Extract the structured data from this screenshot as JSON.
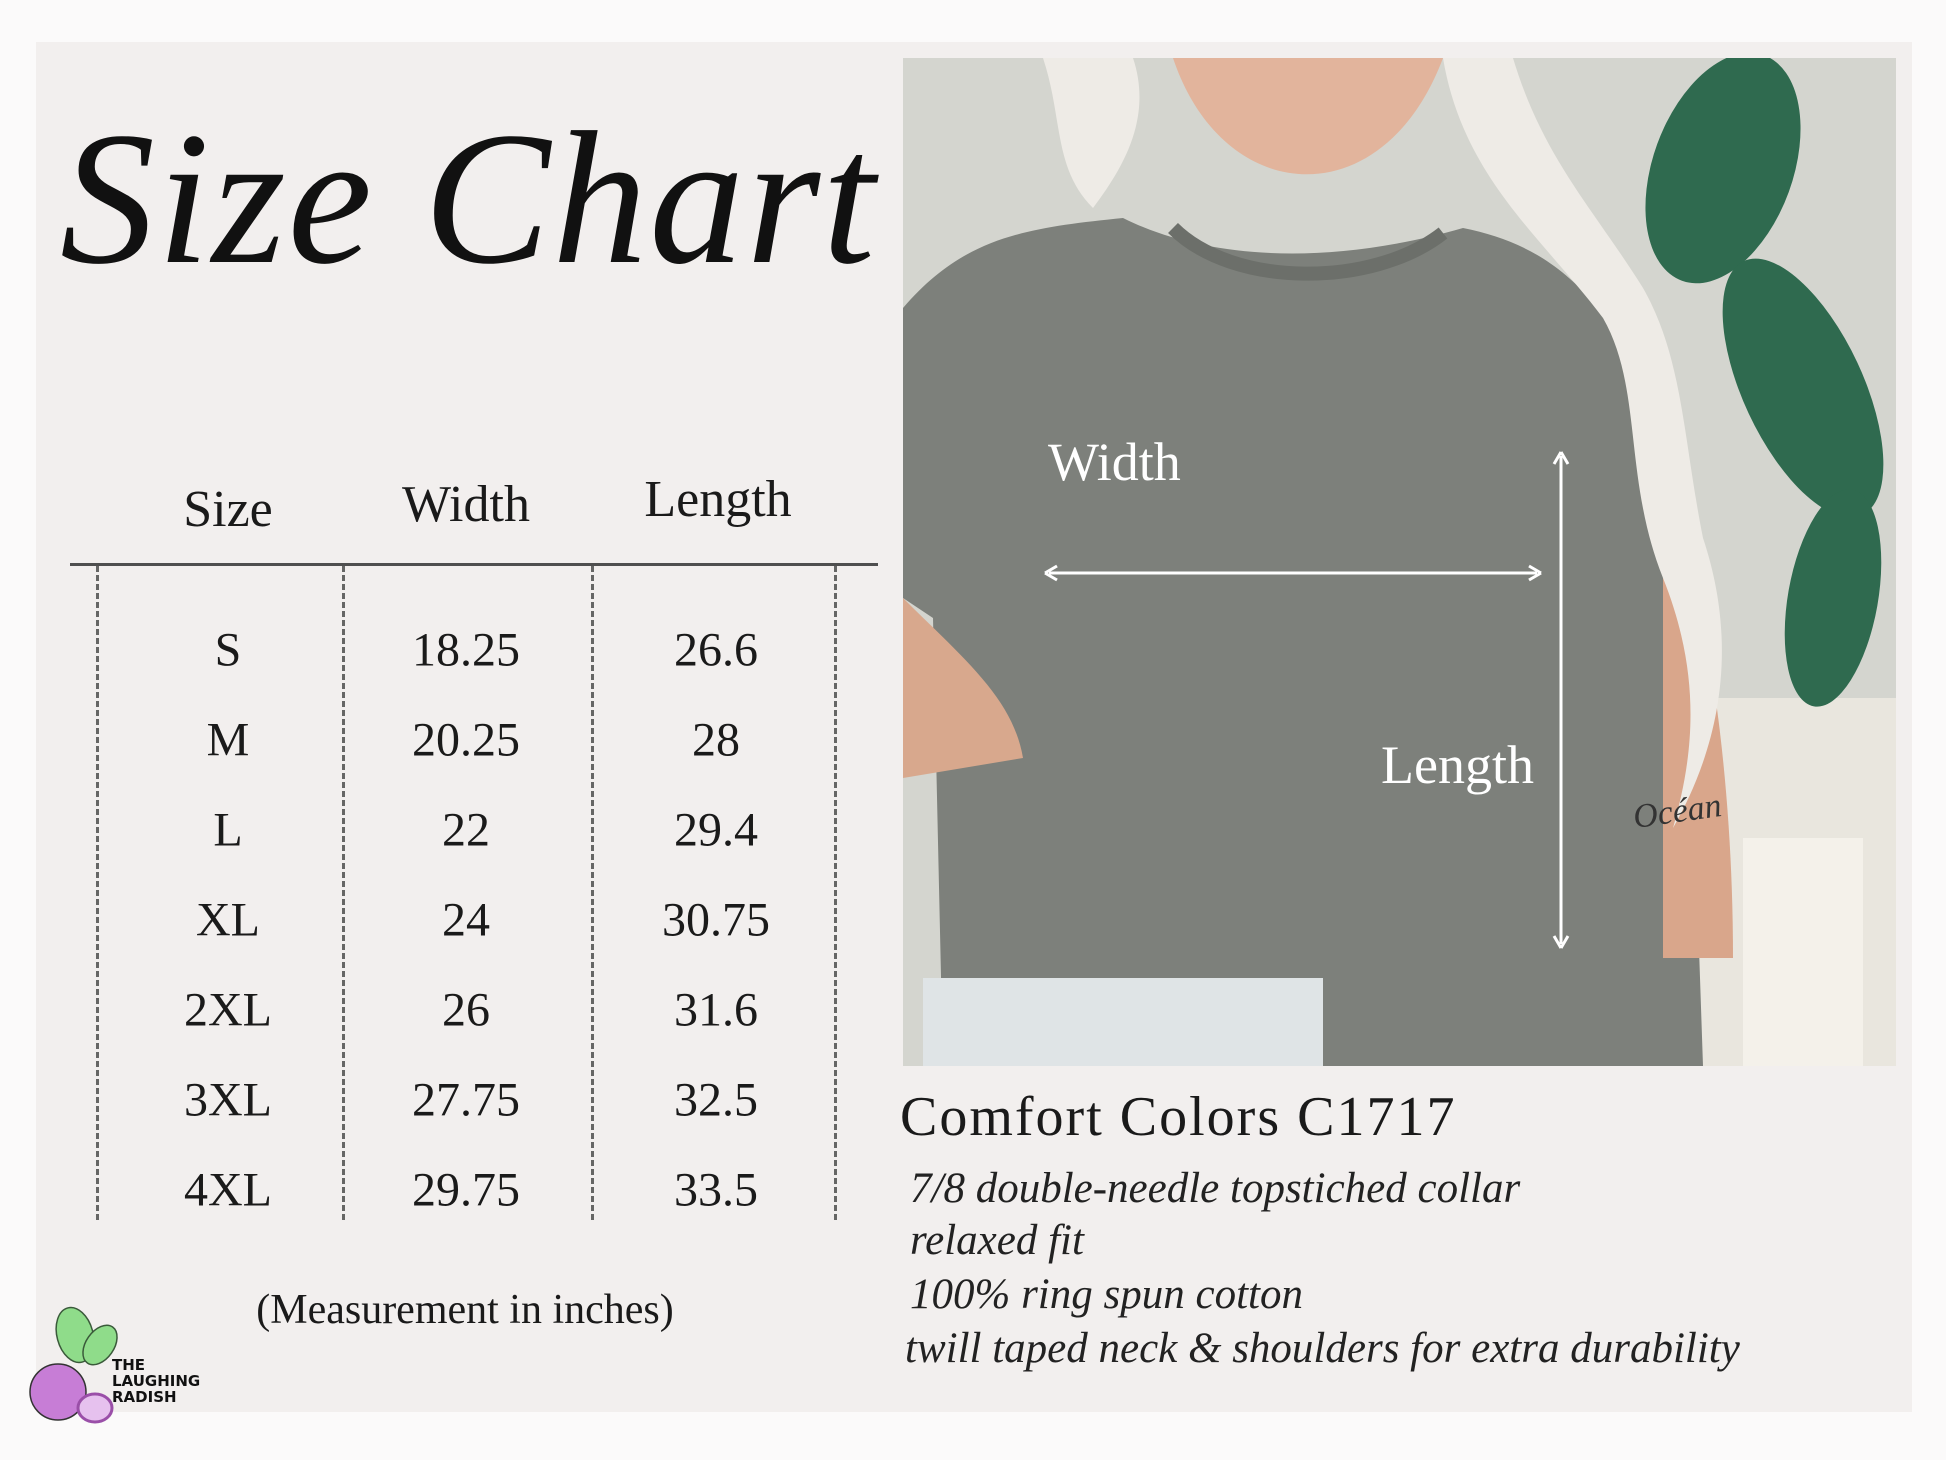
{
  "title": "Size Chart",
  "table": {
    "headers": [
      "Size",
      "Width",
      "Length"
    ],
    "rows": [
      [
        "S",
        "18.25",
        "26.6"
      ],
      [
        "M",
        "20.25",
        "28"
      ],
      [
        "L",
        "22",
        "29.4"
      ],
      [
        "XL",
        "24",
        "30.75"
      ],
      [
        "2XL",
        "26",
        "31.6"
      ],
      [
        "3XL",
        "27.75",
        "32.5"
      ],
      [
        "4XL",
        "29.75",
        "33.5"
      ]
    ],
    "note": "(Measurement in inches)"
  },
  "photo": {
    "width_label": "Width",
    "length_label": "Length",
    "tattoo_text": "Océan"
  },
  "product": {
    "name": "Comfort Colors C1717",
    "features": [
      "7/8 double-needle topstiched collar",
      "relaxed fit",
      "100% ring spun cotton",
      "twill taped neck & shoulders for extra durability"
    ]
  },
  "logo": {
    "text": "THE LAUGHING RADISH",
    "colors": {
      "radish": "#c77dd6",
      "leaves": "#8fdc8a"
    }
  },
  "colors": {
    "background": "#f2efee",
    "shirt": "#7d807b",
    "text": "#1a1a1a"
  }
}
